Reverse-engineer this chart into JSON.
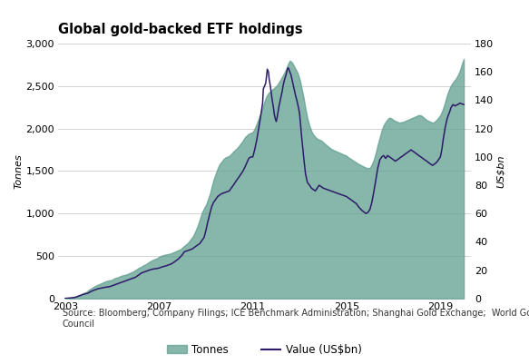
{
  "title": "Global gold-backed ETF holdings",
  "ylabel_left": "Tonnes",
  "ylabel_right": "US$bn",
  "ylim_left": [
    0,
    3000
  ],
  "ylim_right": [
    0,
    180
  ],
  "yticks_left": [
    0,
    500,
    1000,
    1500,
    2000,
    2500,
    3000
  ],
  "yticks_right": [
    0,
    20,
    40,
    60,
    80,
    100,
    120,
    140,
    160,
    180
  ],
  "xticks": [
    2003,
    2007,
    2011,
    2015,
    2019
  ],
  "xlim": [
    2002.7,
    2020.3
  ],
  "fill_color": "#5f9e8f",
  "line_color": "#2d1b69",
  "background_color": "#ffffff",
  "grid_color": "#cccccc",
  "source_text": "Source: Bloomberg; Company Filings; ICE Benchmark Administration; Shanghai Gold Exchange;  World Gold\nCouncil",
  "legend_tonnes": "Tonnes",
  "legend_value": "Value (US$bn)",
  "tonnes_data": [
    [
      2003.0,
      3
    ],
    [
      2003.08,
      5
    ],
    [
      2003.17,
      8
    ],
    [
      2003.25,
      10
    ],
    [
      2003.33,
      15
    ],
    [
      2003.42,
      20
    ],
    [
      2003.5,
      30
    ],
    [
      2003.58,
      40
    ],
    [
      2003.67,
      50
    ],
    [
      2003.75,
      60
    ],
    [
      2003.83,
      70
    ],
    [
      2003.92,
      80
    ],
    [
      2004.0,
      100
    ],
    [
      2004.08,
      115
    ],
    [
      2004.17,
      130
    ],
    [
      2004.25,
      145
    ],
    [
      2004.33,
      155
    ],
    [
      2004.42,
      165
    ],
    [
      2004.5,
      175
    ],
    [
      2004.58,
      185
    ],
    [
      2004.67,
      195
    ],
    [
      2004.75,
      205
    ],
    [
      2004.83,
      210
    ],
    [
      2004.92,
      215
    ],
    [
      2005.0,
      220
    ],
    [
      2005.08,
      235
    ],
    [
      2005.17,
      245
    ],
    [
      2005.25,
      250
    ],
    [
      2005.33,
      260
    ],
    [
      2005.42,
      270
    ],
    [
      2005.5,
      275
    ],
    [
      2005.58,
      280
    ],
    [
      2005.67,
      290
    ],
    [
      2005.75,
      300
    ],
    [
      2005.83,
      310
    ],
    [
      2005.92,
      320
    ],
    [
      2006.0,
      335
    ],
    [
      2006.08,
      350
    ],
    [
      2006.17,
      365
    ],
    [
      2006.25,
      375
    ],
    [
      2006.33,
      390
    ],
    [
      2006.42,
      400
    ],
    [
      2006.5,
      415
    ],
    [
      2006.58,
      430
    ],
    [
      2006.67,
      445
    ],
    [
      2006.75,
      455
    ],
    [
      2006.83,
      465
    ],
    [
      2006.92,
      475
    ],
    [
      2007.0,
      490
    ],
    [
      2007.08,
      500
    ],
    [
      2007.17,
      510
    ],
    [
      2007.25,
      515
    ],
    [
      2007.33,
      520
    ],
    [
      2007.42,
      525
    ],
    [
      2007.5,
      530
    ],
    [
      2007.58,
      540
    ],
    [
      2007.67,
      550
    ],
    [
      2007.75,
      560
    ],
    [
      2007.83,
      570
    ],
    [
      2007.92,
      580
    ],
    [
      2008.0,
      600
    ],
    [
      2008.08,
      620
    ],
    [
      2008.17,
      640
    ],
    [
      2008.25,
      660
    ],
    [
      2008.33,
      690
    ],
    [
      2008.42,
      720
    ],
    [
      2008.5,
      760
    ],
    [
      2008.58,
      810
    ],
    [
      2008.67,
      870
    ],
    [
      2008.75,
      940
    ],
    [
      2008.83,
      1010
    ],
    [
      2008.92,
      1060
    ],
    [
      2009.0,
      1100
    ],
    [
      2009.08,
      1160
    ],
    [
      2009.17,
      1230
    ],
    [
      2009.25,
      1320
    ],
    [
      2009.33,
      1400
    ],
    [
      2009.42,
      1470
    ],
    [
      2009.5,
      1530
    ],
    [
      2009.58,
      1580
    ],
    [
      2009.67,
      1610
    ],
    [
      2009.75,
      1640
    ],
    [
      2009.83,
      1660
    ],
    [
      2009.92,
      1670
    ],
    [
      2010.0,
      1680
    ],
    [
      2010.08,
      1700
    ],
    [
      2010.17,
      1730
    ],
    [
      2010.25,
      1750
    ],
    [
      2010.33,
      1770
    ],
    [
      2010.42,
      1800
    ],
    [
      2010.5,
      1830
    ],
    [
      2010.58,
      1860
    ],
    [
      2010.67,
      1900
    ],
    [
      2010.75,
      1920
    ],
    [
      2010.83,
      1940
    ],
    [
      2010.92,
      1950
    ],
    [
      2011.0,
      1960
    ],
    [
      2011.08,
      2000
    ],
    [
      2011.17,
      2060
    ],
    [
      2011.25,
      2120
    ],
    [
      2011.33,
      2180
    ],
    [
      2011.42,
      2250
    ],
    [
      2011.5,
      2320
    ],
    [
      2011.58,
      2380
    ],
    [
      2011.67,
      2420
    ],
    [
      2011.75,
      2440
    ],
    [
      2011.83,
      2460
    ],
    [
      2011.92,
      2480
    ],
    [
      2012.0,
      2500
    ],
    [
      2012.08,
      2530
    ],
    [
      2012.17,
      2570
    ],
    [
      2012.25,
      2610
    ],
    [
      2012.33,
      2650
    ],
    [
      2012.42,
      2700
    ],
    [
      2012.5,
      2760
    ],
    [
      2012.58,
      2800
    ],
    [
      2012.67,
      2780
    ],
    [
      2012.75,
      2740
    ],
    [
      2012.83,
      2700
    ],
    [
      2012.92,
      2650
    ],
    [
      2013.0,
      2580
    ],
    [
      2013.08,
      2480
    ],
    [
      2013.17,
      2360
    ],
    [
      2013.25,
      2230
    ],
    [
      2013.33,
      2120
    ],
    [
      2013.42,
      2030
    ],
    [
      2013.5,
      1970
    ],
    [
      2013.58,
      1930
    ],
    [
      2013.67,
      1900
    ],
    [
      2013.75,
      1880
    ],
    [
      2013.83,
      1870
    ],
    [
      2013.92,
      1860
    ],
    [
      2014.0,
      1840
    ],
    [
      2014.08,
      1820
    ],
    [
      2014.17,
      1800
    ],
    [
      2014.25,
      1780
    ],
    [
      2014.33,
      1765
    ],
    [
      2014.42,
      1750
    ],
    [
      2014.5,
      1740
    ],
    [
      2014.58,
      1730
    ],
    [
      2014.67,
      1720
    ],
    [
      2014.75,
      1710
    ],
    [
      2014.83,
      1700
    ],
    [
      2014.92,
      1690
    ],
    [
      2015.0,
      1680
    ],
    [
      2015.08,
      1660
    ],
    [
      2015.17,
      1645
    ],
    [
      2015.25,
      1630
    ],
    [
      2015.33,
      1615
    ],
    [
      2015.42,
      1600
    ],
    [
      2015.5,
      1585
    ],
    [
      2015.58,
      1575
    ],
    [
      2015.67,
      1560
    ],
    [
      2015.75,
      1550
    ],
    [
      2015.83,
      1540
    ],
    [
      2015.92,
      1535
    ],
    [
      2016.0,
      1540
    ],
    [
      2016.08,
      1580
    ],
    [
      2016.17,
      1640
    ],
    [
      2016.25,
      1720
    ],
    [
      2016.33,
      1810
    ],
    [
      2016.42,
      1900
    ],
    [
      2016.5,
      1980
    ],
    [
      2016.58,
      2040
    ],
    [
      2016.67,
      2080
    ],
    [
      2016.75,
      2110
    ],
    [
      2016.83,
      2130
    ],
    [
      2016.92,
      2120
    ],
    [
      2017.0,
      2100
    ],
    [
      2017.08,
      2090
    ],
    [
      2017.17,
      2080
    ],
    [
      2017.25,
      2070
    ],
    [
      2017.33,
      2075
    ],
    [
      2017.42,
      2080
    ],
    [
      2017.5,
      2090
    ],
    [
      2017.58,
      2100
    ],
    [
      2017.67,
      2110
    ],
    [
      2017.75,
      2120
    ],
    [
      2017.83,
      2130
    ],
    [
      2017.92,
      2140
    ],
    [
      2018.0,
      2150
    ],
    [
      2018.08,
      2160
    ],
    [
      2018.17,
      2155
    ],
    [
      2018.25,
      2140
    ],
    [
      2018.33,
      2120
    ],
    [
      2018.42,
      2100
    ],
    [
      2018.5,
      2090
    ],
    [
      2018.58,
      2080
    ],
    [
      2018.67,
      2070
    ],
    [
      2018.75,
      2080
    ],
    [
      2018.83,
      2100
    ],
    [
      2018.92,
      2130
    ],
    [
      2019.0,
      2160
    ],
    [
      2019.08,
      2210
    ],
    [
      2019.17,
      2280
    ],
    [
      2019.25,
      2360
    ],
    [
      2019.33,
      2430
    ],
    [
      2019.42,
      2490
    ],
    [
      2019.5,
      2530
    ],
    [
      2019.58,
      2560
    ],
    [
      2019.67,
      2590
    ],
    [
      2019.75,
      2630
    ],
    [
      2019.83,
      2680
    ],
    [
      2019.92,
      2760
    ],
    [
      2020.0,
      2820
    ]
  ],
  "value_data": [
    [
      2003.0,
      0.1
    ],
    [
      2003.08,
      0.2
    ],
    [
      2003.17,
      0.3
    ],
    [
      2003.25,
      0.4
    ],
    [
      2003.33,
      0.6
    ],
    [
      2003.42,
      0.8
    ],
    [
      2003.5,
      1.2
    ],
    [
      2003.58,
      1.8
    ],
    [
      2003.67,
      2.2
    ],
    [
      2003.75,
      2.8
    ],
    [
      2003.83,
      3.2
    ],
    [
      2003.92,
      3.5
    ],
    [
      2004.0,
      4.0
    ],
    [
      2004.08,
      4.8
    ],
    [
      2004.17,
      5.5
    ],
    [
      2004.25,
      6.0
    ],
    [
      2004.33,
      6.5
    ],
    [
      2004.42,
      7.0
    ],
    [
      2004.5,
      7.2
    ],
    [
      2004.58,
      7.5
    ],
    [
      2004.67,
      7.8
    ],
    [
      2004.75,
      8.0
    ],
    [
      2004.83,
      8.2
    ],
    [
      2004.92,
      8.5
    ],
    [
      2005.0,
      9.0
    ],
    [
      2005.08,
      9.5
    ],
    [
      2005.17,
      10.0
    ],
    [
      2005.25,
      10.5
    ],
    [
      2005.33,
      11.0
    ],
    [
      2005.42,
      11.5
    ],
    [
      2005.5,
      12.0
    ],
    [
      2005.58,
      12.5
    ],
    [
      2005.67,
      13.0
    ],
    [
      2005.75,
      13.5
    ],
    [
      2005.83,
      14.0
    ],
    [
      2005.92,
      14.5
    ],
    [
      2006.0,
      15.0
    ],
    [
      2006.08,
      16.0
    ],
    [
      2006.17,
      17.0
    ],
    [
      2006.25,
      18.0
    ],
    [
      2006.33,
      18.5
    ],
    [
      2006.42,
      19.0
    ],
    [
      2006.5,
      19.5
    ],
    [
      2006.58,
      20.0
    ],
    [
      2006.67,
      20.5
    ],
    [
      2006.75,
      20.8
    ],
    [
      2006.83,
      21.0
    ],
    [
      2006.92,
      21.2
    ],
    [
      2007.0,
      21.5
    ],
    [
      2007.08,
      22.0
    ],
    [
      2007.17,
      22.5
    ],
    [
      2007.25,
      22.8
    ],
    [
      2007.33,
      23.2
    ],
    [
      2007.42,
      23.8
    ],
    [
      2007.5,
      24.2
    ],
    [
      2007.58,
      25.0
    ],
    [
      2007.67,
      26.0
    ],
    [
      2007.75,
      27.0
    ],
    [
      2007.83,
      28.0
    ],
    [
      2007.92,
      29.5
    ],
    [
      2008.0,
      31.0
    ],
    [
      2008.08,
      33.0
    ],
    [
      2008.17,
      33.5
    ],
    [
      2008.25,
      34.0
    ],
    [
      2008.33,
      34.5
    ],
    [
      2008.42,
      35.0
    ],
    [
      2008.5,
      36.0
    ],
    [
      2008.58,
      37.0
    ],
    [
      2008.67,
      38.0
    ],
    [
      2008.75,
      39.0
    ],
    [
      2008.83,
      41.0
    ],
    [
      2008.92,
      43.0
    ],
    [
      2009.0,
      48.0
    ],
    [
      2009.08,
      54.0
    ],
    [
      2009.17,
      60.0
    ],
    [
      2009.25,
      65.0
    ],
    [
      2009.33,
      68.0
    ],
    [
      2009.42,
      70.0
    ],
    [
      2009.5,
      72.0
    ],
    [
      2009.58,
      73.0
    ],
    [
      2009.67,
      74.0
    ],
    [
      2009.75,
      74.5
    ],
    [
      2009.83,
      75.0
    ],
    [
      2009.92,
      75.5
    ],
    [
      2010.0,
      76.0
    ],
    [
      2010.08,
      78.0
    ],
    [
      2010.17,
      80.0
    ],
    [
      2010.25,
      82.0
    ],
    [
      2010.33,
      84.0
    ],
    [
      2010.42,
      86.0
    ],
    [
      2010.5,
      88.0
    ],
    [
      2010.58,
      90.0
    ],
    [
      2010.67,
      93.0
    ],
    [
      2010.75,
      96.0
    ],
    [
      2010.83,
      99.0
    ],
    [
      2010.92,
      100.0
    ],
    [
      2011.0,
      100.0
    ],
    [
      2011.08,
      105.0
    ],
    [
      2011.17,
      112.0
    ],
    [
      2011.25,
      120.0
    ],
    [
      2011.33,
      128.0
    ],
    [
      2011.42,
      138.0
    ],
    [
      2011.45,
      148.0
    ],
    [
      2011.5,
      150.0
    ],
    [
      2011.55,
      152.0
    ],
    [
      2011.58,
      156.0
    ],
    [
      2011.62,
      162.0
    ],
    [
      2011.67,
      160.0
    ],
    [
      2011.7,
      155.0
    ],
    [
      2011.75,
      150.0
    ],
    [
      2011.79,
      145.0
    ],
    [
      2011.83,
      140.0
    ],
    [
      2011.88,
      135.0
    ],
    [
      2011.92,
      130.0
    ],
    [
      2011.96,
      127.0
    ],
    [
      2012.0,
      125.0
    ],
    [
      2012.04,
      128.0
    ],
    [
      2012.08,
      132.0
    ],
    [
      2012.12,
      136.0
    ],
    [
      2012.17,
      140.0
    ],
    [
      2012.21,
      143.0
    ],
    [
      2012.25,
      146.0
    ],
    [
      2012.29,
      150.0
    ],
    [
      2012.33,
      153.0
    ],
    [
      2012.38,
      156.0
    ],
    [
      2012.42,
      158.0
    ],
    [
      2012.46,
      161.0
    ],
    [
      2012.5,
      163.0
    ],
    [
      2012.54,
      162.0
    ],
    [
      2012.58,
      160.0
    ],
    [
      2012.63,
      158.0
    ],
    [
      2012.67,
      155.0
    ],
    [
      2012.71,
      152.0
    ],
    [
      2012.75,
      149.0
    ],
    [
      2012.79,
      146.0
    ],
    [
      2012.83,
      143.0
    ],
    [
      2012.88,
      140.0
    ],
    [
      2012.92,
      137.0
    ],
    [
      2012.96,
      134.0
    ],
    [
      2013.0,
      130.0
    ],
    [
      2013.08,
      115.0
    ],
    [
      2013.17,
      100.0
    ],
    [
      2013.25,
      88.0
    ],
    [
      2013.33,
      82.0
    ],
    [
      2013.42,
      80.0
    ],
    [
      2013.5,
      78.0
    ],
    [
      2013.58,
      77.0
    ],
    [
      2013.67,
      76.0
    ],
    [
      2013.75,
      78.0
    ],
    [
      2013.83,
      80.0
    ],
    [
      2013.92,
      79.0
    ],
    [
      2014.0,
      78.0
    ],
    [
      2014.08,
      77.5
    ],
    [
      2014.17,
      77.0
    ],
    [
      2014.25,
      76.5
    ],
    [
      2014.33,
      76.0
    ],
    [
      2014.42,
      75.5
    ],
    [
      2014.5,
      75.0
    ],
    [
      2014.58,
      74.5
    ],
    [
      2014.67,
      74.0
    ],
    [
      2014.75,
      73.5
    ],
    [
      2014.83,
      73.0
    ],
    [
      2014.92,
      72.5
    ],
    [
      2015.0,
      72.0
    ],
    [
      2015.08,
      71.0
    ],
    [
      2015.17,
      70.0
    ],
    [
      2015.25,
      69.0
    ],
    [
      2015.33,
      68.0
    ],
    [
      2015.42,
      67.0
    ],
    [
      2015.5,
      65.0
    ],
    [
      2015.58,
      63.5
    ],
    [
      2015.67,
      62.0
    ],
    [
      2015.75,
      61.0
    ],
    [
      2015.83,
      60.0
    ],
    [
      2015.88,
      60.5
    ],
    [
      2015.92,
      61.0
    ],
    [
      2016.0,
      63.0
    ],
    [
      2016.08,
      68.0
    ],
    [
      2016.17,
      76.0
    ],
    [
      2016.25,
      84.0
    ],
    [
      2016.33,
      92.0
    ],
    [
      2016.42,
      98.0
    ],
    [
      2016.5,
      100.0
    ],
    [
      2016.58,
      101.0
    ],
    [
      2016.62,
      100.0
    ],
    [
      2016.67,
      99.0
    ],
    [
      2016.71,
      100.0
    ],
    [
      2016.75,
      101.0
    ],
    [
      2016.79,
      100.5
    ],
    [
      2016.83,
      100.0
    ],
    [
      2016.88,
      99.5
    ],
    [
      2016.92,
      99.0
    ],
    [
      2016.96,
      98.5
    ],
    [
      2017.0,
      98.0
    ],
    [
      2017.04,
      97.5
    ],
    [
      2017.08,
      97.0
    ],
    [
      2017.12,
      97.5
    ],
    [
      2017.17,
      98.0
    ],
    [
      2017.21,
      98.5
    ],
    [
      2017.25,
      99.0
    ],
    [
      2017.29,
      99.5
    ],
    [
      2017.33,
      100.0
    ],
    [
      2017.38,
      100.5
    ],
    [
      2017.42,
      101.0
    ],
    [
      2017.46,
      101.5
    ],
    [
      2017.5,
      102.0
    ],
    [
      2017.54,
      102.5
    ],
    [
      2017.58,
      103.0
    ],
    [
      2017.63,
      103.5
    ],
    [
      2017.67,
      104.0
    ],
    [
      2017.71,
      104.5
    ],
    [
      2017.75,
      105.0
    ],
    [
      2017.79,
      104.5
    ],
    [
      2017.83,
      104.0
    ],
    [
      2017.88,
      103.5
    ],
    [
      2017.92,
      103.0
    ],
    [
      2017.96,
      102.5
    ],
    [
      2018.0,
      102.0
    ],
    [
      2018.04,
      101.5
    ],
    [
      2018.08,
      101.0
    ],
    [
      2018.12,
      100.5
    ],
    [
      2018.17,
      100.0
    ],
    [
      2018.21,
      99.5
    ],
    [
      2018.25,
      99.0
    ],
    [
      2018.29,
      98.5
    ],
    [
      2018.33,
      98.0
    ],
    [
      2018.38,
      97.5
    ],
    [
      2018.42,
      97.0
    ],
    [
      2018.46,
      96.5
    ],
    [
      2018.5,
      96.0
    ],
    [
      2018.54,
      95.5
    ],
    [
      2018.58,
      95.0
    ],
    [
      2018.63,
      94.5
    ],
    [
      2018.67,
      94.0
    ],
    [
      2018.71,
      94.5
    ],
    [
      2018.75,
      95.0
    ],
    [
      2018.79,
      95.5
    ],
    [
      2018.83,
      96.0
    ],
    [
      2018.88,
      97.0
    ],
    [
      2018.92,
      98.0
    ],
    [
      2018.96,
      99.0
    ],
    [
      2019.0,
      100.0
    ],
    [
      2019.04,
      103.0
    ],
    [
      2019.08,
      107.0
    ],
    [
      2019.12,
      112.0
    ],
    [
      2019.17,
      117.0
    ],
    [
      2019.21,
      121.0
    ],
    [
      2019.25,
      124.0
    ],
    [
      2019.29,
      127.0
    ],
    [
      2019.33,
      129.0
    ],
    [
      2019.38,
      131.0
    ],
    [
      2019.42,
      133.0
    ],
    [
      2019.46,
      135.0
    ],
    [
      2019.5,
      136.0
    ],
    [
      2019.54,
      137.0
    ],
    [
      2019.58,
      136.5
    ],
    [
      2019.63,
      136.0
    ],
    [
      2019.67,
      136.5
    ],
    [
      2019.75,
      137.0
    ],
    [
      2019.83,
      138.0
    ],
    [
      2019.92,
      137.5
    ],
    [
      2020.0,
      137.0
    ]
  ]
}
